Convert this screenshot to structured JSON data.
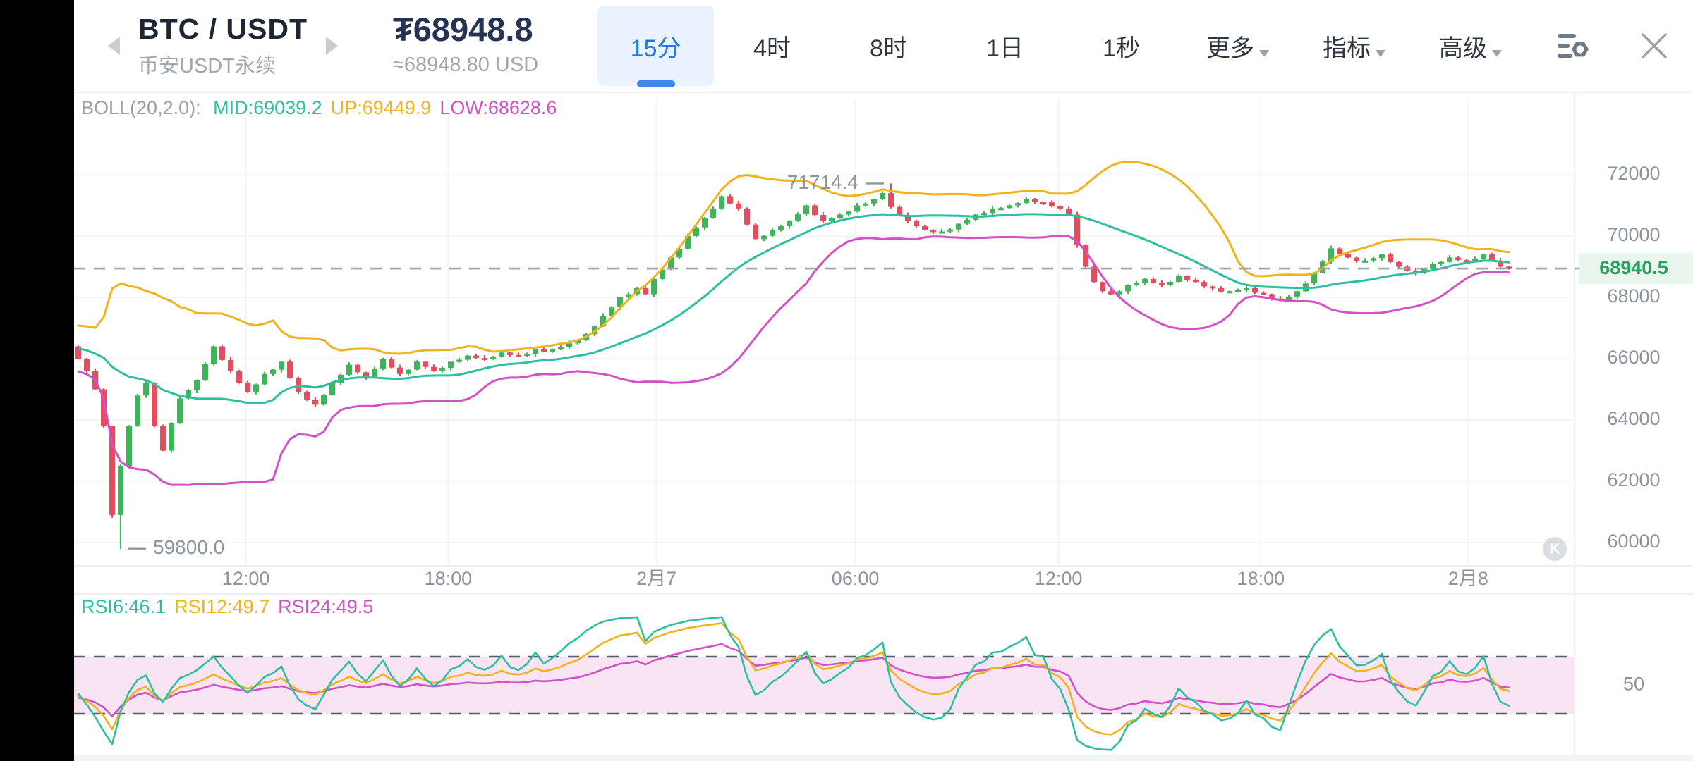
{
  "header": {
    "pair": "BTC / USDT",
    "subtitle": "币安USDT永续",
    "price": "₮68948.8",
    "approx_price": "≈68948.80 USD"
  },
  "toolbar": {
    "timeframes": [
      "15分",
      "4时",
      "8时",
      "1日",
      "1秒"
    ],
    "active_timeframe": "15分",
    "dropdowns": [
      "更多",
      "指标",
      "高级"
    ]
  },
  "indicators": {
    "boll_label": "BOLL(20,2.0):",
    "boll_items": [
      {
        "text": "MID:69039.2",
        "color": "#2cc0a0"
      },
      {
        "text": "UP:69449.9",
        "color": "#f1b31c"
      },
      {
        "text": "LOW:68628.6",
        "color": "#d44fc8"
      }
    ],
    "rsi_items": [
      {
        "text": "RSI6:46.1",
        "color": "#2cc0a0"
      },
      {
        "text": "RSI12:49.7",
        "color": "#f1b31c"
      },
      {
        "text": "RSI24:49.5",
        "color": "#d44fc8"
      }
    ]
  },
  "chart_data": {
    "type": "candlestick",
    "interval": "15分",
    "title": "BTC/USDT perpetual 15-minute candles with BOLL(20,2.0) bands and RSI(6,12,24)",
    "y_ticks": [
      72000,
      70000,
      68000,
      66000,
      64000,
      62000,
      60000
    ],
    "ylim": [
      59500,
      72600
    ],
    "x_ticks": [
      {
        "index": 20.3,
        "label": "12:00"
      },
      {
        "index": 44.2,
        "label": "18:00"
      },
      {
        "index": 68.8,
        "label": "2月7"
      },
      {
        "index": 92.3,
        "label": "06:00"
      },
      {
        "index": 116.3,
        "label": "12:00"
      },
      {
        "index": 140.2,
        "label": "18:00"
      },
      {
        "index": 164.7,
        "label": "2月8"
      }
    ],
    "current_price": 68940.5,
    "current_price_label": "68940.5",
    "high_annotation": {
      "index": 96,
      "price": 71714.4,
      "label": "71714.4"
    },
    "low_annotation": {
      "index": 5,
      "price": 59800.0,
      "label": "59800.0"
    },
    "num_candles": 170,
    "first_open": 66400,
    "close_waypoints": [
      [
        0,
        66000
      ],
      [
        1,
        65600
      ],
      [
        2,
        65000
      ],
      [
        3,
        63800
      ],
      [
        4,
        60900
      ],
      [
        5,
        62500
      ],
      [
        6,
        63800
      ],
      [
        7,
        64800
      ],
      [
        8,
        65200
      ],
      [
        9,
        63800
      ],
      [
        10,
        63000
      ],
      [
        11,
        63900
      ],
      [
        12,
        64700
      ],
      [
        14,
        65300
      ],
      [
        16,
        66400
      ],
      [
        18,
        65600
      ],
      [
        20,
        64900
      ],
      [
        22,
        65500
      ],
      [
        24,
        65900
      ],
      [
        26,
        64900
      ],
      [
        28,
        64500
      ],
      [
        30,
        65200
      ],
      [
        32,
        65800
      ],
      [
        34,
        65400
      ],
      [
        36,
        66000
      ],
      [
        38,
        65500
      ],
      [
        40,
        65900
      ],
      [
        42,
        65600
      ],
      [
        44,
        65900
      ],
      [
        46,
        66100
      ],
      [
        48,
        66000
      ],
      [
        50,
        66200
      ],
      [
        52,
        66100
      ],
      [
        54,
        66300
      ],
      [
        56,
        66300
      ],
      [
        58,
        66500
      ],
      [
        60,
        66800
      ],
      [
        62,
        67400
      ],
      [
        64,
        68000
      ],
      [
        66,
        68300
      ],
      [
        67,
        68100
      ],
      [
        68,
        68600
      ],
      [
        70,
        69300
      ],
      [
        72,
        70000
      ],
      [
        74,
        70600
      ],
      [
        76,
        71300
      ],
      [
        78,
        70900
      ],
      [
        80,
        69900
      ],
      [
        82,
        70200
      ],
      [
        84,
        70500
      ],
      [
        86,
        71000
      ],
      [
        88,
        70500
      ],
      [
        90,
        70700
      ],
      [
        92,
        71000
      ],
      [
        94,
        71200
      ],
      [
        95,
        71400
      ],
      [
        96,
        70950
      ],
      [
        98,
        70500
      ],
      [
        100,
        70200
      ],
      [
        102,
        70150
      ],
      [
        104,
        70400
      ],
      [
        106,
        70700
      ],
      [
        108,
        70900
      ],
      [
        110,
        71000
      ],
      [
        112,
        71200
      ],
      [
        114,
        71100
      ],
      [
        116,
        70900
      ],
      [
        117,
        70700
      ],
      [
        118,
        69700
      ],
      [
        119,
        69000
      ],
      [
        120,
        68500
      ],
      [
        121,
        68200
      ],
      [
        122,
        68100
      ],
      [
        124,
        68400
      ],
      [
        126,
        68600
      ],
      [
        128,
        68400
      ],
      [
        130,
        68700
      ],
      [
        132,
        68500
      ],
      [
        134,
        68300
      ],
      [
        136,
        68200
      ],
      [
        138,
        68300
      ],
      [
        140,
        68100
      ],
      [
        142,
        67900
      ],
      [
        144,
        68200
      ],
      [
        146,
        68800
      ],
      [
        148,
        69600
      ],
      [
        150,
        69300
      ],
      [
        152,
        69200
      ],
      [
        154,
        69400
      ],
      [
        156,
        69000
      ],
      [
        158,
        68800
      ],
      [
        160,
        69100
      ],
      [
        162,
        69300
      ],
      [
        164,
        69200
      ],
      [
        166,
        69400
      ],
      [
        167,
        69200
      ],
      [
        168,
        69000
      ],
      [
        169,
        68948.8
      ]
    ],
    "jitter": [
      35,
      -45,
      20,
      -30,
      55,
      -40,
      15,
      -60,
      45,
      -20,
      30,
      -50,
      18,
      -36,
      60,
      -25
    ],
    "wick_pattern": [
      50,
      25,
      80,
      40,
      20,
      65,
      30,
      55,
      90,
      35
    ],
    "preroll_closes": [
      68200,
      67600,
      68000,
      67200,
      67600,
      66800,
      67200,
      66400,
      66900,
      66100,
      66600,
      65900,
      66500,
      66200,
      66800,
      66000,
      66500,
      65800,
      66300,
      65900,
      66400,
      66000,
      66300,
      66050
    ],
    "boll": {
      "period": 20,
      "mult": 2
    },
    "rsi_periods": [
      6,
      12,
      24
    ],
    "rsi_guides": {
      "upper": 70,
      "lower": 30,
      "mid": 50,
      "mid_label": "50"
    },
    "watermark": "K"
  },
  "colors": {
    "candle_up": "#3fb459",
    "candle_down": "#e74c5c",
    "boll_up": "#f1b31c",
    "boll_mid": "#2cc0a0",
    "boll_low": "#d44fc8",
    "rsi6": "#2cc0a0",
    "rsi12": "#f1b31c",
    "rsi24": "#d44fc8",
    "rsi_band_fill": "#f8ddf1",
    "guide_dash": "#555d69",
    "price_dash": "#9ca3af",
    "price_label_bg": "#e9f5ed",
    "price_label_text": "#27a35c",
    "axis_text": "#8e959e",
    "grid": "#f4f5f7",
    "divider": "#eef0f2",
    "watermark_fill": "#c2c7ce",
    "accent_blue": "#1f78e3"
  }
}
